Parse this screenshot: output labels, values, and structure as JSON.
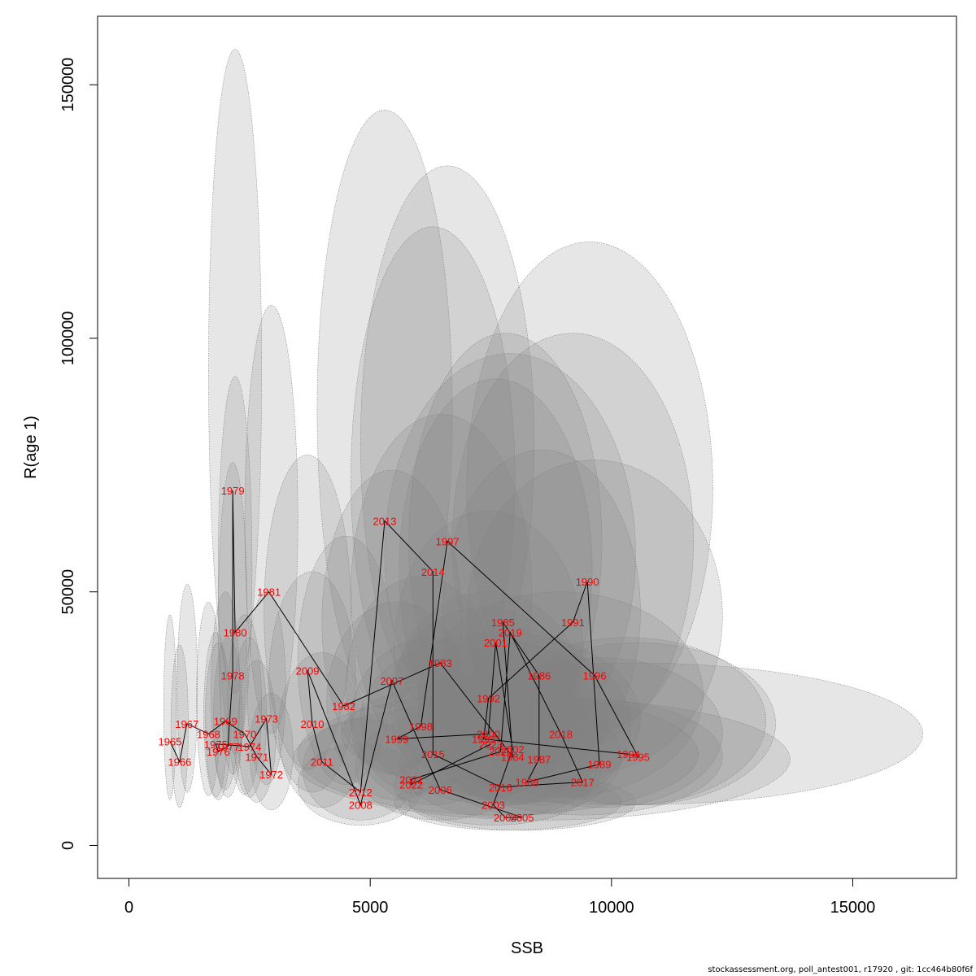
{
  "footer": "stockassessment.org, poll_antest001, r17920 , git: 1cc464b80f6f",
  "chart_data": {
    "type": "scatter",
    "title": "",
    "xlabel": "SSB",
    "ylabel": "R(age 1)",
    "xlim": [
      -650,
      17150
    ],
    "ylim": [
      -6500,
      163500
    ],
    "xticks": [
      0,
      5000,
      10000,
      15000
    ],
    "yticks": [
      0,
      50000,
      100000,
      150000
    ],
    "ytick_labels_rotated": true,
    "grid": false,
    "points_connected_in_year_order": true,
    "point_label_color": "#ff0000",
    "ellipse_fill": "rgba(128,128,128,0.2)",
    "ellipse_stroke": "#808080",
    "points": [
      {
        "year": "1965",
        "ssb": 850,
        "rec": 20500,
        "ssb_lo": 720,
        "ssb_hi": 980,
        "rec_lo": 9000,
        "rec_hi": 45500
      },
      {
        "year": "1966",
        "ssb": 1050,
        "rec": 16500,
        "ssb_lo": 870,
        "ssb_hi": 1230,
        "rec_lo": 7500,
        "rec_hi": 39500
      },
      {
        "year": "1967",
        "ssb": 1200,
        "rec": 24000,
        "ssb_lo": 1000,
        "ssb_hi": 1420,
        "rec_lo": 10500,
        "rec_hi": 51500
      },
      {
        "year": "1968",
        "ssb": 1650,
        "rec": 22000,
        "ssb_lo": 1400,
        "ssb_hi": 1900,
        "rec_lo": 9800,
        "rec_hi": 48000
      },
      {
        "year": "1969",
        "ssb": 2000,
        "rec": 24500,
        "ssb_lo": 1700,
        "ssb_hi": 2300,
        "rec_lo": 11000,
        "rec_hi": 50000
      },
      {
        "year": "1970",
        "ssb": 2400,
        "rec": 22000,
        "ssb_lo": 2050,
        "ssb_hi": 2750,
        "rec_lo": 10000,
        "rec_hi": 45500
      },
      {
        "year": "1971",
        "ssb": 2650,
        "rec": 17500,
        "ssb_lo": 2250,
        "ssb_hi": 3050,
        "rec_lo": 8500,
        "rec_hi": 36500
      },
      {
        "year": "1972",
        "ssb": 2950,
        "rec": 14000,
        "ssb_lo": 2500,
        "ssb_hi": 3400,
        "rec_lo": 7000,
        "rec_hi": 30000
      },
      {
        "year": "1973",
        "ssb": 2850,
        "rec": 25000,
        "ssb_lo": 2450,
        "ssb_hi": 3250,
        "rec_lo": 12000,
        "rec_hi": 50000
      },
      {
        "year": "1974",
        "ssb": 2500,
        "rec": 19500,
        "ssb_lo": 2150,
        "ssb_hi": 2850,
        "rec_lo": 9500,
        "rec_hi": 41000
      },
      {
        "year": "1975",
        "ssb": 1800,
        "rec": 20000,
        "ssb_lo": 1550,
        "ssb_hi": 2050,
        "rec_lo": 9500,
        "rec_hi": 42000
      },
      {
        "year": "1976",
        "ssb": 1850,
        "rec": 18500,
        "ssb_lo": 1580,
        "ssb_hi": 2120,
        "rec_lo": 9000,
        "rec_hi": 40000
      },
      {
        "year": "1977",
        "ssb": 2050,
        "rec": 19500,
        "ssb_lo": 1750,
        "ssb_hi": 2350,
        "rec_lo": 9500,
        "rec_hi": 41000
      },
      {
        "year": "1978",
        "ssb": 2150,
        "rec": 33500,
        "ssb_lo": 1850,
        "ssb_hi": 2450,
        "rec_lo": 14000,
        "rec_hi": 75500
      },
      {
        "year": "1979",
        "ssb": 2150,
        "rec": 70000,
        "ssb_lo": 1650,
        "ssb_hi": 2750,
        "rec_lo": 30000,
        "rec_hi": 157000
      },
      {
        "year": "1980",
        "ssb": 2200,
        "rec": 42000,
        "ssb_lo": 1850,
        "ssb_hi": 2550,
        "rec_lo": 18000,
        "rec_hi": 92500
      },
      {
        "year": "1981",
        "ssb": 2900,
        "rec": 50000,
        "ssb_lo": 2400,
        "ssb_hi": 3500,
        "rec_lo": 22000,
        "rec_hi": 106500
      },
      {
        "year": "1982",
        "ssb": 4450,
        "rec": 27500,
        "ssb_lo": 3500,
        "ssb_hi": 5500,
        "rec_lo": 12000,
        "rec_hi": 61000
      },
      {
        "year": "1983",
        "ssb": 6450,
        "rec": 36000,
        "ssb_lo": 4600,
        "ssb_hi": 8350,
        "rec_lo": 15000,
        "rec_hi": 85000
      },
      {
        "year": "1984",
        "ssb": 7950,
        "rec": 17500,
        "ssb_lo": 6200,
        "ssb_hi": 9700,
        "rec_lo": 8000,
        "rec_hi": 40000
      },
      {
        "year": "1985",
        "ssb": 7750,
        "rec": 44000,
        "ssb_lo": 5800,
        "ssb_hi": 9800,
        "rec_lo": 19000,
        "rec_hi": 101000
      },
      {
        "year": "1986",
        "ssb": 8500,
        "rec": 33500,
        "ssb_lo": 6500,
        "ssb_hi": 10600,
        "rec_lo": 14000,
        "rec_hi": 78000
      },
      {
        "year": "1987",
        "ssb": 8500,
        "rec": 17000,
        "ssb_lo": 6600,
        "ssb_hi": 10400,
        "rec_lo": 8000,
        "rec_hi": 39000
      },
      {
        "year": "1988",
        "ssb": 8250,
        "rec": 12500,
        "ssb_lo": 6300,
        "ssb_hi": 10200,
        "rec_lo": 6000,
        "rec_hi": 29000
      },
      {
        "year": "1989",
        "ssb": 9750,
        "rec": 16000,
        "ssb_lo": 7300,
        "ssb_hi": 12300,
        "rec_lo": 7500,
        "rec_hi": 37000
      },
      {
        "year": "1990",
        "ssb": 9500,
        "rec": 52000,
        "ssb_lo": 7000,
        "ssb_hi": 12100,
        "rec_lo": 22000,
        "rec_hi": 119000
      },
      {
        "year": "1991",
        "ssb": 9200,
        "rec": 44000,
        "ssb_lo": 6700,
        "ssb_hi": 11700,
        "rec_lo": 19000,
        "rec_hi": 101000
      },
      {
        "year": "1992",
        "ssb": 7450,
        "rec": 29000,
        "ssb_lo": 5500,
        "ssb_hi": 9400,
        "rec_lo": 12500,
        "rec_hi": 66000
      },
      {
        "year": "1993",
        "ssb": 7350,
        "rec": 21000,
        "ssb_lo": 5400,
        "ssb_hi": 9300,
        "rec_lo": 9000,
        "rec_hi": 47000
      },
      {
        "year": "1994",
        "ssb": 10350,
        "rec": 18000,
        "ssb_lo": 7500,
        "ssb_hi": 13200,
        "rec_lo": 8000,
        "rec_hi": 41000
      },
      {
        "year": "1995",
        "ssb": 10550,
        "rec": 17500,
        "ssb_lo": 7700,
        "ssb_hi": 13400,
        "rec_lo": 8000,
        "rec_hi": 40000
      },
      {
        "year": "1996",
        "ssb": 9650,
        "rec": 33500,
        "ssb_lo": 7000,
        "ssb_hi": 12300,
        "rec_lo": 14500,
        "rec_hi": 76000
      },
      {
        "year": "1997",
        "ssb": 6600,
        "rec": 60000,
        "ssb_lo": 4800,
        "ssb_hi": 8400,
        "rec_lo": 25000,
        "rec_hi": 134000
      },
      {
        "year": "1998",
        "ssb": 6050,
        "rec": 23500,
        "ssb_lo": 4500,
        "ssb_hi": 7600,
        "rec_lo": 10000,
        "rec_hi": 53000
      },
      {
        "year": "1999",
        "ssb": 5550,
        "rec": 21000,
        "ssb_lo": 4100,
        "ssb_hi": 7000,
        "rec_lo": 9000,
        "rec_hi": 48000
      },
      {
        "year": "2000",
        "ssb": 7450,
        "rec": 22000,
        "ssb_lo": 5500,
        "ssb_hi": 9400,
        "rec_lo": 9500,
        "rec_hi": 50000
      },
      {
        "year": "2001",
        "ssb": 7600,
        "rec": 40000,
        "ssb_lo": 5600,
        "ssb_hi": 9600,
        "rec_lo": 17000,
        "rec_hi": 92000
      },
      {
        "year": "2002",
        "ssb": 7950,
        "rec": 19000,
        "ssb_lo": 6000,
        "ssb_hi": 9900,
        "rec_lo": 8500,
        "rec_hi": 43000
      },
      {
        "year": "2003",
        "ssb": 7550,
        "rec": 8000,
        "ssb_lo": 5500,
        "ssb_hi": 9600,
        "rec_lo": 4000,
        "rec_hi": 20000
      },
      {
        "year": "2004",
        "ssb": 7800,
        "rec": 5500,
        "ssb_lo": 5500,
        "ssb_hi": 10200,
        "rec_lo": 3000,
        "rec_hi": 14000
      },
      {
        "year": "2005",
        "ssb": 8150,
        "rec": 5500,
        "ssb_lo": 5800,
        "ssb_hi": 10500,
        "rec_lo": 3000,
        "rec_hi": 14000
      },
      {
        "year": "2006",
        "ssb": 6450,
        "rec": 11000,
        "ssb_lo": 4700,
        "ssb_hi": 8200,
        "rec_lo": 5000,
        "rec_hi": 26000
      },
      {
        "year": "2007",
        "ssb": 5450,
        "rec": 32500,
        "ssb_lo": 4000,
        "ssb_hi": 6900,
        "rec_lo": 14000,
        "rec_hi": 74000
      },
      {
        "year": "2008",
        "ssb": 4800,
        "rec": 8000,
        "ssb_lo": 3500,
        "ssb_hi": 6100,
        "rec_lo": 4000,
        "rec_hi": 20000
      },
      {
        "year": "2009",
        "ssb": 3700,
        "rec": 34500,
        "ssb_lo": 2800,
        "ssb_hi": 4600,
        "rec_lo": 15000,
        "rec_hi": 77000
      },
      {
        "year": "2010",
        "ssb": 3800,
        "rec": 24000,
        "ssb_lo": 2900,
        "ssb_hi": 4700,
        "rec_lo": 10500,
        "rec_hi": 54000
      },
      {
        "year": "2011",
        "ssb": 4000,
        "rec": 16500,
        "ssb_lo": 3100,
        "ssb_hi": 4900,
        "rec_lo": 7500,
        "rec_hi": 38000
      },
      {
        "year": "2012",
        "ssb": 4800,
        "rec": 10500,
        "ssb_lo": 3600,
        "ssb_hi": 6000,
        "rec_lo": 5000,
        "rec_hi": 25000
      },
      {
        "year": "2013",
        "ssb": 5300,
        "rec": 64000,
        "ssb_lo": 3900,
        "ssb_hi": 6700,
        "rec_lo": 27000,
        "rec_hi": 145000
      },
      {
        "year": "2014",
        "ssb": 6300,
        "rec": 54000,
        "ssb_lo": 4600,
        "ssb_hi": 8000,
        "rec_lo": 23000,
        "rec_hi": 122000
      },
      {
        "year": "2015",
        "ssb": 6300,
        "rec": 18000,
        "ssb_lo": 4600,
        "ssb_hi": 8000,
        "rec_lo": 8000,
        "rec_hi": 41000
      },
      {
        "year": "2016",
        "ssb": 7700,
        "rec": 11500,
        "ssb_lo": 5600,
        "ssb_hi": 9800,
        "rec_lo": 5500,
        "rec_hi": 27000
      },
      {
        "year": "2017",
        "ssb": 9400,
        "rec": 12500,
        "ssb_lo": 6500,
        "ssb_hi": 12300,
        "rec_lo": 6000,
        "rec_hi": 29000
      },
      {
        "year": "2018",
        "ssb": 8950,
        "rec": 22000,
        "ssb_lo": 6000,
        "ssb_hi": 11900,
        "rec_lo": 9500,
        "rec_hi": 50000
      },
      {
        "year": "2019",
        "ssb": 7900,
        "rec": 42000,
        "ssb_lo": 5300,
        "ssb_hi": 10500,
        "rec_lo": 18000,
        "rec_hi": 97000
      },
      {
        "year": "2020",
        "ssb": 7700,
        "rec": 18500,
        "ssb_lo": 4800,
        "ssb_hi": 10600,
        "rec_lo": 8000,
        "rec_hi": 42000
      },
      {
        "year": "2021",
        "ssb": 5850,
        "rec": 13000,
        "ssb_lo": 3500,
        "ssb_hi": 11800,
        "rec_lo": 6000,
        "rec_hi": 30000
      },
      {
        "year": "2022",
        "ssb": 5850,
        "rec": 12000,
        "ssb_lo": 3400,
        "ssb_hi": 13700,
        "rec_lo": 5000,
        "rec_hi": 29000
      },
      {
        "year": "2023",
        "ssb": 7500,
        "rec": 20000,
        "ssb_lo": 4400,
        "ssb_hi": 16450,
        "rec_lo": 8000,
        "rec_hi": 36000
      }
    ]
  }
}
